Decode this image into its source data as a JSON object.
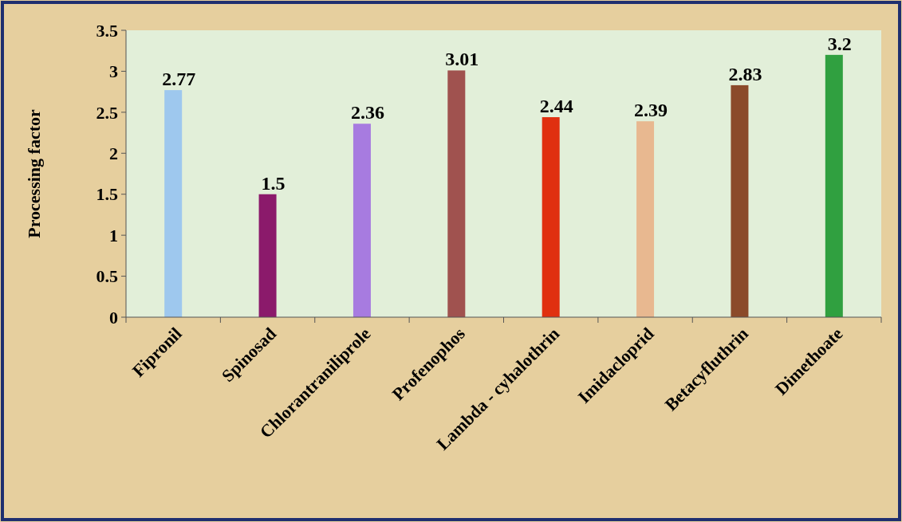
{
  "chart_data": {
    "type": "bar",
    "ylabel": "Processing factor",
    "categories": [
      "Fipronil",
      "Spinosad",
      "Chlorantraniliprole",
      "Profenophos",
      "Lambda - cyhalothrin",
      "Imidacloprid",
      "Betacyfluthrin",
      "Dimethoate"
    ],
    "values": [
      2.77,
      1.5,
      2.36,
      3.01,
      2.44,
      2.39,
      2.83,
      3.2
    ],
    "colors": [
      "#9ec8ee",
      "#8b1a6b",
      "#a77be0",
      "#a0524f",
      "#e03010",
      "#e8b890",
      "#8b4a2a",
      "#30a040"
    ],
    "ylim": [
      0,
      3.5
    ],
    "yticks": [
      0,
      0.5,
      1,
      1.5,
      2,
      2.5,
      3,
      3.5
    ],
    "data_labels": true,
    "grid": false
  }
}
